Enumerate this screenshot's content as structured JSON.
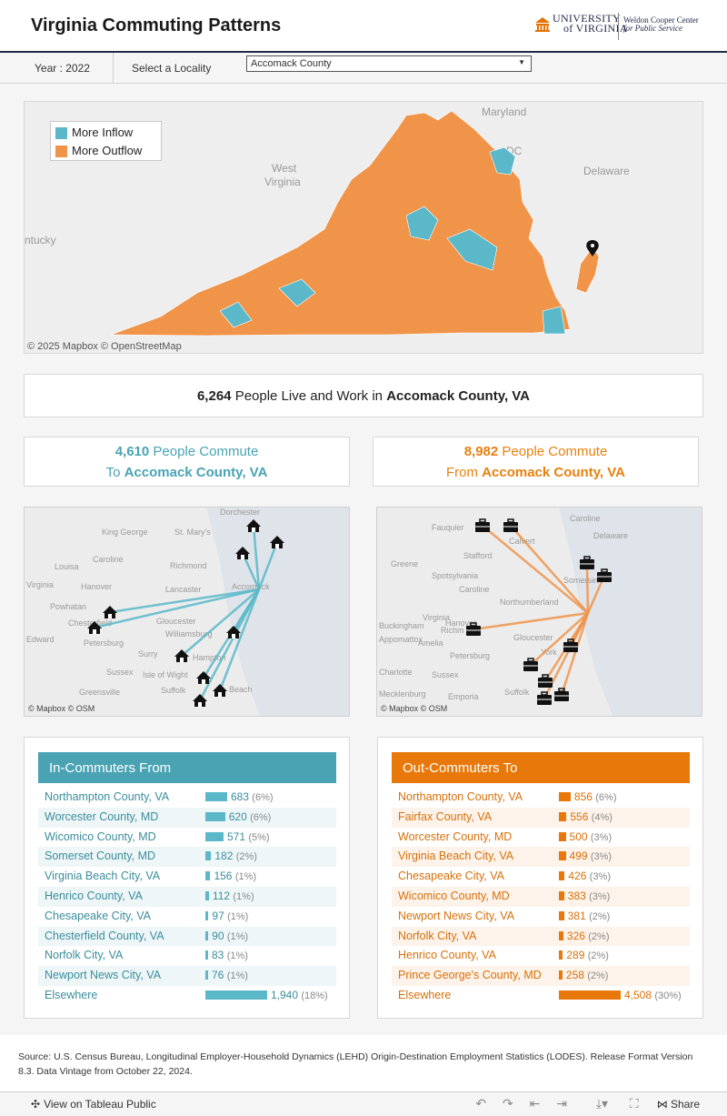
{
  "header": {
    "title": "Virginia Commuting Patterns",
    "logo_university": "UNIVERSITY",
    "logo_virginia": "of VIRGINIA",
    "logo_center_line1": "Weldon Cooper Center",
    "logo_center_line2": "for Public Service"
  },
  "filters": {
    "year_label": "Year : 2022",
    "locality_label": "Select a Locality",
    "locality_value": "Accomack County"
  },
  "map": {
    "legend": [
      {
        "label": "More Inflow",
        "color": "#5bb8c9"
      },
      {
        "label": "More Outflow",
        "color": "#f0944a"
      }
    ],
    "labels": {
      "maryland": "Maryland",
      "delaware": "Delaware",
      "west_virginia_1": "West",
      "west_virginia_2": "Virginia",
      "kentucky": "ntucky",
      "dc": "DC"
    },
    "attribution": "© 2025 Mapbox  © OpenStreetMap"
  },
  "summary": {
    "count": "6,264",
    "text": "People Live and Work in",
    "place": "Accomack County, VA"
  },
  "in_commute": {
    "count": "4,610",
    "text1": "People Commute",
    "text2": "To",
    "place": "Accomack County, VA",
    "color": "#4aa3b3"
  },
  "out_commute": {
    "count": "8,982",
    "text1": "People Commute",
    "text2": "From",
    "place": "Accomack County, VA",
    "color": "#e8810f"
  },
  "in_flowmap": {
    "attribution": "© Mapbox  © OSM",
    "labels": [
      "Dorchester",
      "King George",
      "St. Mary's",
      "Caroline",
      "Richmond",
      "Louisa",
      "Hanover",
      "Lancaster",
      "Accomack",
      "Chesterfield",
      "Powhatan",
      "Gloucester",
      "Williamsburg",
      "Surry",
      "Hampton",
      "Isle of Wight",
      "Sussex",
      "Suffolk",
      "Greensville",
      "Beach",
      "Virginia",
      "Edward",
      "Petersburg"
    ]
  },
  "out_flowmap": {
    "attribution": "© Mapbox  © OSM",
    "labels": [
      "Caroline",
      "Fauquier",
      "Calvert",
      "Delaware",
      "Stafford",
      "Greene",
      "Spotsylvania",
      "Caroline",
      "Somerset",
      "Northumberland",
      "Virginia",
      "Hanover",
      "Buckingham",
      "Richm",
      "Gloucester",
      "Amelia",
      "Appomattox",
      "Petersburg",
      "York",
      "Charlotte",
      "Sussex",
      "Mecklenburg",
      "Emporia",
      "Suffolk"
    ]
  },
  "in_table": {
    "title": "In-Commuters From",
    "color": "#5bb8c9",
    "header_color": "#4aa3b3",
    "text_color": "#3a8d9c",
    "rows": [
      {
        "name": "Northampton County, VA",
        "value": 683,
        "value_label": "683",
        "pct": "(6%)"
      },
      {
        "name": "Worcester County, MD",
        "value": 620,
        "value_label": "620",
        "pct": "(6%)"
      },
      {
        "name": "Wicomico County, MD",
        "value": 571,
        "value_label": "571",
        "pct": "(5%)"
      },
      {
        "name": "Somerset County, MD",
        "value": 182,
        "value_label": "182",
        "pct": "(2%)"
      },
      {
        "name": "Virginia Beach City, VA",
        "value": 156,
        "value_label": "156",
        "pct": "(1%)"
      },
      {
        "name": "Henrico County, VA",
        "value": 112,
        "value_label": "112",
        "pct": "(1%)"
      },
      {
        "name": "Chesapeake City, VA",
        "value": 97,
        "value_label": "97",
        "pct": "(1%)"
      },
      {
        "name": "Chesterfield County, VA",
        "value": 90,
        "value_label": "90",
        "pct": "(1%)"
      },
      {
        "name": "Norfolk City, VA",
        "value": 83,
        "value_label": "83",
        "pct": "(1%)"
      },
      {
        "name": "Newport News City, VA",
        "value": 76,
        "value_label": "76",
        "pct": "(1%)"
      },
      {
        "name": "Elsewhere",
        "value": 1940,
        "value_label": "1,940",
        "pct": "(18%)"
      }
    ]
  },
  "out_table": {
    "title": "Out-Commuters To",
    "color": "#e8780a",
    "header_color": "#e8780a",
    "text_color": "#d6700a",
    "rows": [
      {
        "name": "Northampton County, VA",
        "value": 856,
        "value_label": "856",
        "pct": "(6%)"
      },
      {
        "name": "Fairfax County, VA",
        "value": 556,
        "value_label": "556",
        "pct": "(4%)"
      },
      {
        "name": "Worcester County, MD",
        "value": 500,
        "value_label": "500",
        "pct": "(3%)"
      },
      {
        "name": "Virginia Beach City, VA",
        "value": 499,
        "value_label": "499",
        "pct": "(3%)"
      },
      {
        "name": "Chesapeake City, VA",
        "value": 426,
        "value_label": "426",
        "pct": "(3%)"
      },
      {
        "name": "Wicomico County, MD",
        "value": 383,
        "value_label": "383",
        "pct": "(3%)"
      },
      {
        "name": "Newport News City, VA",
        "value": 381,
        "value_label": "381",
        "pct": "(2%)"
      },
      {
        "name": "Norfolk City, VA",
        "value": 326,
        "value_label": "326",
        "pct": "(2%)"
      },
      {
        "name": "Henrico County, VA",
        "value": 289,
        "value_label": "289",
        "pct": "(2%)"
      },
      {
        "name": "Prince George's County, MD",
        "value": 258,
        "value_label": "258",
        "pct": "(2%)"
      },
      {
        "name": "Elsewhere",
        "value": 4508,
        "value_label": "4,508",
        "pct": "(30%)"
      }
    ]
  },
  "footer": {
    "source": "Source: U.S. Census Bureau, Longitudinal Employer-Household Dynamics (LEHD) Origin-Destination Employment Statistics (LODES). Release Format Version 8.3. Data Vintage from October 22, 2024.",
    "view_label": "View on Tableau Public",
    "share_label": "Share"
  }
}
